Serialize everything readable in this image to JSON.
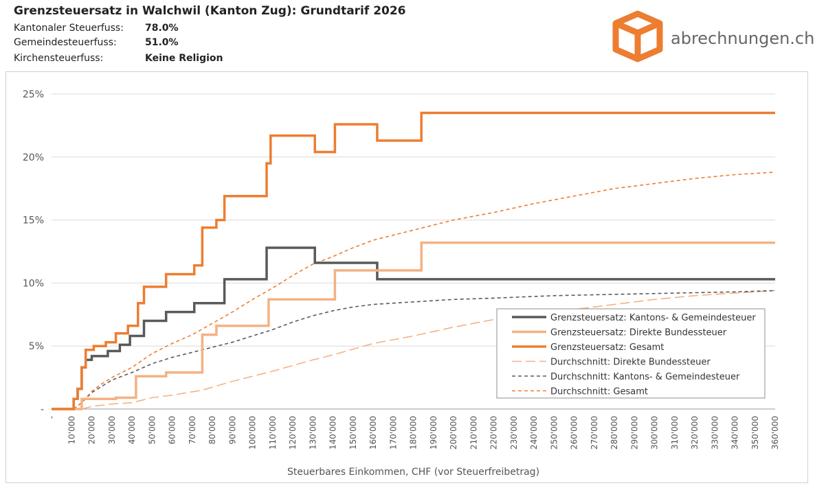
{
  "header": {
    "title": "Grenzsteuersatz in Walchwil (Kanton Zug): Grundtarif 2026",
    "rows": [
      {
        "label": "Kantonaler Steuerfuss:",
        "value": "78.0%"
      },
      {
        "label": "Gemeindesteuerfuss:",
        "value": "51.0%"
      },
      {
        "label": "Kirchensteuerfuss:",
        "value": "Keine Religion"
      }
    ]
  },
  "logo": {
    "text": "abrechnungen.ch",
    "icon": "box-icon",
    "color": "#ED7D31"
  },
  "chart_data": {
    "type": "line",
    "xlabel": "Steuerbares Einkommen, CHF (vor Steuerfreibetrag)",
    "ylabel": "",
    "xlim": [
      0,
      360000
    ],
    "ylim": [
      0,
      25
    ],
    "grid": true,
    "legend_position": "bottom-right",
    "x_ticks": [
      "-",
      "10'000",
      "20'000",
      "30'000",
      "40'000",
      "50'000",
      "60'000",
      "70'000",
      "80'000",
      "90'000",
      "100'000",
      "110'000",
      "120'000",
      "130'000",
      "140'000",
      "150'000",
      "160'000",
      "170'000",
      "180'000",
      "190'000",
      "200'000",
      "210'000",
      "220'000",
      "230'000",
      "240'000",
      "250'000",
      "260'000",
      "270'000",
      "280'000",
      "290'000",
      "300'000",
      "310'000",
      "320'000",
      "330'000",
      "340'000",
      "350'000",
      "360'000"
    ],
    "y_ticks": [
      "-",
      "5%",
      "10%",
      "15%",
      "20%",
      "25%"
    ],
    "series": [
      {
        "name": "Grenzsteuersatz: Kantons- & Gemeindesteuer",
        "style": "step",
        "color": "#595959",
        "dash": "none",
        "width": 3.5,
        "points": [
          [
            0,
            0
          ],
          [
            11000,
            0
          ],
          [
            11000,
            0.8
          ],
          [
            13000,
            0.8
          ],
          [
            13000,
            1.6
          ],
          [
            15000,
            1.6
          ],
          [
            15000,
            3.3
          ],
          [
            17000,
            3.3
          ],
          [
            17000,
            3.9
          ],
          [
            20000,
            3.9
          ],
          [
            20000,
            4.2
          ],
          [
            28000,
            4.2
          ],
          [
            28000,
            4.6
          ],
          [
            34000,
            4.6
          ],
          [
            34000,
            5.1
          ],
          [
            39000,
            5.1
          ],
          [
            39000,
            5.8
          ],
          [
            46000,
            5.8
          ],
          [
            46000,
            7.0
          ],
          [
            57000,
            7.0
          ],
          [
            57000,
            7.7
          ],
          [
            71000,
            7.7
          ],
          [
            71000,
            8.4
          ],
          [
            86000,
            8.4
          ],
          [
            86000,
            10.3
          ],
          [
            107000,
            10.3
          ],
          [
            107000,
            12.8
          ],
          [
            131000,
            12.8
          ],
          [
            131000,
            11.6
          ],
          [
            162000,
            11.6
          ],
          [
            162000,
            10.3
          ],
          [
            360000,
            10.3
          ]
        ]
      },
      {
        "name": "Grenzsteuersatz: Direkte Bundessteuer",
        "style": "step",
        "color": "#F4B183",
        "dash": "none",
        "width": 3.5,
        "points": [
          [
            0,
            0
          ],
          [
            15000,
            0
          ],
          [
            15000,
            0.8
          ],
          [
            32000,
            0.8
          ],
          [
            32000,
            0.9
          ],
          [
            42000,
            0.9
          ],
          [
            42000,
            2.6
          ],
          [
            57000,
            2.6
          ],
          [
            57000,
            2.9
          ],
          [
            75000,
            2.9
          ],
          [
            75000,
            5.9
          ],
          [
            82000,
            5.9
          ],
          [
            82000,
            6.6
          ],
          [
            108000,
            6.6
          ],
          [
            108000,
            8.7
          ],
          [
            141000,
            8.7
          ],
          [
            141000,
            11.0
          ],
          [
            184000,
            11.0
          ],
          [
            184000,
            13.2
          ],
          [
            360000,
            13.2
          ]
        ]
      },
      {
        "name": "Grenzsteuersatz: Gesamt",
        "style": "step",
        "color": "#ED7D31",
        "dash": "none",
        "width": 3.5,
        "points": [
          [
            0,
            0
          ],
          [
            11000,
            0
          ],
          [
            11000,
            0.8
          ],
          [
            13000,
            0.8
          ],
          [
            13000,
            1.6
          ],
          [
            15000,
            1.6
          ],
          [
            15000,
            3.3
          ],
          [
            17000,
            3.3
          ],
          [
            17000,
            4.7
          ],
          [
            21000,
            4.7
          ],
          [
            21000,
            5.0
          ],
          [
            27000,
            5.0
          ],
          [
            27000,
            5.3
          ],
          [
            32000,
            5.3
          ],
          [
            32000,
            6.0
          ],
          [
            38000,
            6.0
          ],
          [
            38000,
            6.6
          ],
          [
            43000,
            6.6
          ],
          [
            43000,
            8.4
          ],
          [
            46000,
            8.4
          ],
          [
            46000,
            9.7
          ],
          [
            57000,
            9.7
          ],
          [
            57000,
            10.7
          ],
          [
            71000,
            10.7
          ],
          [
            71000,
            11.4
          ],
          [
            75000,
            11.4
          ],
          [
            75000,
            14.4
          ],
          [
            82000,
            14.4
          ],
          [
            82000,
            15.0
          ],
          [
            86000,
            15.0
          ],
          [
            86000,
            16.9
          ],
          [
            107000,
            16.9
          ],
          [
            107000,
            19.5
          ],
          [
            109000,
            19.5
          ],
          [
            109000,
            21.7
          ],
          [
            131000,
            21.7
          ],
          [
            131000,
            20.4
          ],
          [
            141000,
            20.4
          ],
          [
            141000,
            22.6
          ],
          [
            162000,
            22.6
          ],
          [
            162000,
            21.3
          ],
          [
            184000,
            21.3
          ],
          [
            184000,
            23.5
          ],
          [
            360000,
            23.5
          ]
        ]
      },
      {
        "name": "Durchschnitt: Direkte Bundessteuer",
        "style": "line",
        "color": "#F4B183",
        "dash": "14,6",
        "width": 1.6,
        "points": [
          [
            15000,
            0
          ],
          [
            20000,
            0.2
          ],
          [
            30000,
            0.4
          ],
          [
            40000,
            0.5
          ],
          [
            50000,
            0.9
          ],
          [
            60000,
            1.1
          ],
          [
            75000,
            1.5
          ],
          [
            90000,
            2.2
          ],
          [
            110000,
            3.0
          ],
          [
            130000,
            3.9
          ],
          [
            140000,
            4.3
          ],
          [
            160000,
            5.2
          ],
          [
            180000,
            5.8
          ],
          [
            200000,
            6.5
          ],
          [
            220000,
            7.1
          ],
          [
            240000,
            7.5
          ],
          [
            260000,
            7.9
          ],
          [
            280000,
            8.3
          ],
          [
            300000,
            8.7
          ],
          [
            320000,
            9.0
          ],
          [
            340000,
            9.2
          ],
          [
            360000,
            9.4
          ]
        ]
      },
      {
        "name": "Durchschnitt: Kantons- & Gemeindesteuer",
        "style": "line",
        "color": "#595959",
        "dash": "5,4",
        "width": 1.6,
        "points": [
          [
            11000,
            0
          ],
          [
            15000,
            0.5
          ],
          [
            20000,
            1.3
          ],
          [
            25000,
            1.8
          ],
          [
            30000,
            2.3
          ],
          [
            40000,
            2.9
          ],
          [
            50000,
            3.6
          ],
          [
            60000,
            4.1
          ],
          [
            70000,
            4.5
          ],
          [
            80000,
            4.9
          ],
          [
            90000,
            5.3
          ],
          [
            100000,
            5.8
          ],
          [
            110000,
            6.3
          ],
          [
            120000,
            6.9
          ],
          [
            130000,
            7.4
          ],
          [
            140000,
            7.8
          ],
          [
            150000,
            8.1
          ],
          [
            160000,
            8.3
          ],
          [
            180000,
            8.5
          ],
          [
            200000,
            8.7
          ],
          [
            220000,
            8.8
          ],
          [
            250000,
            9.0
          ],
          [
            280000,
            9.1
          ],
          [
            310000,
            9.2
          ],
          [
            340000,
            9.3
          ],
          [
            360000,
            9.4
          ]
        ]
      },
      {
        "name": "Durchschnitt: Gesamt",
        "style": "line",
        "color": "#ED7D31",
        "dash": "5,4",
        "width": 1.6,
        "points": [
          [
            11000,
            0
          ],
          [
            15000,
            0.5
          ],
          [
            20000,
            1.4
          ],
          [
            25000,
            2.0
          ],
          [
            30000,
            2.5
          ],
          [
            40000,
            3.3
          ],
          [
            50000,
            4.4
          ],
          [
            60000,
            5.2
          ],
          [
            70000,
            5.9
          ],
          [
            80000,
            6.8
          ],
          [
            90000,
            7.7
          ],
          [
            100000,
            8.7
          ],
          [
            110000,
            9.6
          ],
          [
            120000,
            10.6
          ],
          [
            130000,
            11.5
          ],
          [
            140000,
            12.1
          ],
          [
            150000,
            12.8
          ],
          [
            160000,
            13.4
          ],
          [
            180000,
            14.2
          ],
          [
            200000,
            15.0
          ],
          [
            220000,
            15.6
          ],
          [
            240000,
            16.3
          ],
          [
            260000,
            16.9
          ],
          [
            280000,
            17.5
          ],
          [
            300000,
            17.9
          ],
          [
            320000,
            18.3
          ],
          [
            340000,
            18.6
          ],
          [
            360000,
            18.8
          ]
        ]
      }
    ]
  }
}
